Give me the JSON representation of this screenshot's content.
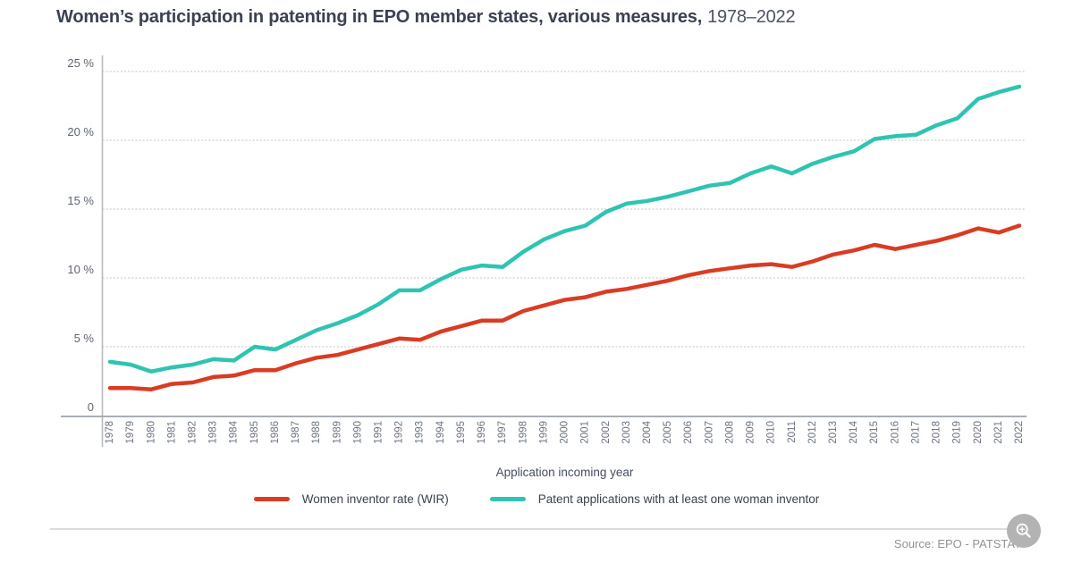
{
  "title": {
    "main": "Women’s participation in patenting in EPO member states, various measures,",
    "period": "1978–2022"
  },
  "chart_data": {
    "type": "line",
    "x": [
      1978,
      1979,
      1980,
      1981,
      1982,
      1983,
      1984,
      1985,
      1986,
      1987,
      1988,
      1989,
      1990,
      1991,
      1992,
      1993,
      1994,
      1995,
      1996,
      1997,
      1998,
      1999,
      2000,
      2001,
      2002,
      2003,
      2004,
      2005,
      2006,
      2007,
      2008,
      2009,
      2010,
      2011,
      2012,
      2013,
      2014,
      2015,
      2016,
      2017,
      2018,
      2019,
      2020,
      2021,
      2022
    ],
    "series": [
      {
        "name": "Women inventor rate (WIR)",
        "color": "#d93b23",
        "values": [
          2.0,
          2.0,
          1.9,
          2.3,
          2.4,
          2.8,
          2.9,
          3.3,
          3.3,
          3.8,
          4.2,
          4.4,
          4.8,
          5.2,
          5.6,
          5.5,
          6.1,
          6.5,
          6.9,
          6.9,
          7.6,
          8.0,
          8.4,
          8.6,
          9.0,
          9.2,
          9.5,
          9.8,
          10.2,
          10.5,
          10.7,
          10.9,
          11.0,
          10.8,
          11.2,
          11.7,
          12.0,
          12.4,
          12.1,
          12.4,
          12.7,
          13.1,
          13.6,
          13.3,
          13.8
        ]
      },
      {
        "name": "Patent applications with at least one woman inventor",
        "color": "#2fc3b2",
        "values": [
          3.9,
          3.7,
          3.2,
          3.5,
          3.7,
          4.1,
          4.0,
          5.0,
          4.8,
          5.5,
          6.2,
          6.7,
          7.3,
          8.1,
          9.1,
          9.1,
          9.9,
          10.6,
          10.9,
          10.8,
          11.9,
          12.8,
          13.4,
          13.8,
          14.8,
          15.4,
          15.6,
          15.9,
          16.3,
          16.7,
          16.9,
          17.6,
          18.1,
          17.6,
          18.3,
          18.8,
          19.2,
          20.1,
          20.3,
          20.4,
          21.1,
          21.6,
          23.0,
          23.5,
          23.9
        ]
      }
    ],
    "xlabel": "Application incoming year",
    "ylim": [
      0,
      25
    ],
    "yticks": [
      {
        "value": 25,
        "label": "25 %"
      },
      {
        "value": 20,
        "label": "20 %"
      },
      {
        "value": 15,
        "label": "15 %"
      },
      {
        "value": 10,
        "label": "10 %"
      },
      {
        "value": 5,
        "label": "5 %"
      },
      {
        "value": 0,
        "label": "0"
      }
    ],
    "grid": "horizontal-dotted",
    "legend_position": "bottom"
  },
  "footer": {
    "source": "Source: EPO - PATSTAT",
    "zoom_icon": "magnifier-plus-icon"
  }
}
